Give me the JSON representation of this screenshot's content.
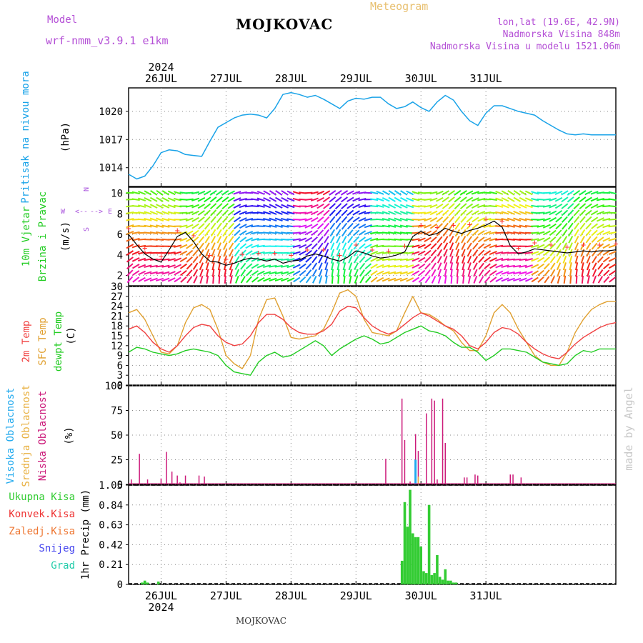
{
  "header": {
    "model_label": "Model",
    "model_name": "wrf-nmm_v3.9.1 e1km",
    "title": "MOJKOVAC",
    "meteogram": "Meteogram",
    "lonlat": "lon,lat (19.6E, 42.9N)",
    "elevation": "Nadmorska Visina 848m",
    "model_elevation": "Nadmorska Visina u modelu 1521.06m",
    "year": "2024",
    "footer": "MOJKOVAC",
    "watermark": "made by Angel"
  },
  "colors": {
    "pressure": "#1aa3e8",
    "wind_speed": "#000000",
    "temp2m": "#f04040",
    "sfc_temp": "#e0a030",
    "dewpt": "#22cc22",
    "high_cloud": "#22aaee",
    "mid_cloud": "#e8b040",
    "low_cloud": "#cc1a7a",
    "total_precip": "#33cc33",
    "conv_precip": "#ee3333",
    "frz_precip": "#ee7733",
    "snow": "#4444ee",
    "grad": "#22ccaa",
    "wind_label": "#22cc22",
    "compass": "#aa55dd",
    "header_purple": "#b44fd6",
    "header_orange": "#e8c070"
  },
  "chart_data": [
    {
      "type": "line",
      "panel": "pressure",
      "ylabel_lines": [
        "Pritisak na nivou mora",
        "(hPa)"
      ],
      "x_unit": "hours from 2024-07-25 12:00",
      "xticks": [
        "26JUL",
        "27JUL",
        "28JUL",
        "29JUL",
        "30JUL",
        "31JUL"
      ],
      "ylim": [
        1012.0,
        1022.5
      ],
      "yticks": [
        1014,
        1017,
        1020
      ],
      "grid": true,
      "series": [
        {
          "x": [
            0,
            3,
            6,
            9,
            12,
            15,
            18,
            21,
            24,
            27,
            30,
            33,
            36,
            39,
            42,
            45,
            48,
            51,
            54,
            57,
            60,
            63,
            66,
            69,
            72,
            75,
            78,
            81,
            84,
            87,
            90,
            93,
            96,
            99,
            102,
            105,
            108,
            111,
            114,
            117,
            120,
            123,
            126,
            129,
            132,
            135,
            138,
            141,
            144,
            147,
            150,
            153,
            156,
            159,
            162,
            165,
            168,
            171,
            174,
            177,
            180
          ],
          "values": [
            1013.3,
            1012.8,
            1013.1,
            1014.2,
            1015.6,
            1015.9,
            1015.8,
            1015.4,
            1015.3,
            1015.2,
            1016.8,
            1018.3,
            1018.8,
            1019.3,
            1019.6,
            1019.7,
            1019.6,
            1019.3,
            1020.3,
            1021.8,
            1022.0,
            1021.8,
            1021.5,
            1021.7,
            1021.3,
            1020.8,
            1020.3,
            1021.1,
            1021.4,
            1021.3,
            1021.5,
            1021.5,
            1020.8,
            1020.3,
            1020.5,
            1021.0,
            1020.4,
            1020.0,
            1021.0,
            1021.7,
            1021.2,
            1020.0,
            1019.0,
            1018.5,
            1019.8,
            1020.6,
            1020.6,
            1020.3,
            1020.0,
            1019.8,
            1019.6,
            1019.0,
            1018.5,
            1018.0,
            1017.6,
            1017.5,
            1017.6,
            1017.5,
            1017.5,
            1017.5,
            1017.5
          ]
        }
      ]
    },
    {
      "type": "line",
      "panel": "wind",
      "ylabel_lines": [
        "10m Vjetar",
        "Brzina i Pravac",
        "(m/s)"
      ],
      "compass": {
        "n": "N",
        "s": "S",
        "w": "W",
        "e": "E"
      },
      "ylim": [
        1.0,
        10.6
      ],
      "yticks": [
        2,
        4,
        6,
        8,
        10
      ],
      "grid": true,
      "series": [
        {
          "name": "Brzina",
          "x": [
            0,
            3,
            6,
            9,
            12,
            15,
            18,
            21,
            24,
            27,
            30,
            33,
            36,
            39,
            42,
            45,
            48,
            51,
            54,
            57,
            60,
            63,
            66,
            69,
            72,
            75,
            78,
            81,
            84,
            87,
            90,
            93,
            96,
            99,
            102,
            105,
            108,
            111,
            114,
            117,
            120,
            123,
            126,
            129,
            132,
            135,
            138,
            141,
            144,
            147,
            150,
            153,
            156,
            159,
            162,
            165,
            168,
            171,
            174,
            177,
            180
          ],
          "values": [
            6.0,
            5.0,
            4.1,
            3.6,
            3.3,
            4.5,
            5.8,
            6.2,
            5.3,
            4.1,
            3.4,
            3.3,
            3.0,
            3.2,
            3.5,
            3.7,
            3.6,
            3.4,
            3.6,
            3.2,
            3.4,
            3.5,
            3.9,
            4.1,
            3.9,
            3.6,
            3.4,
            3.8,
            4.4,
            4.2,
            3.9,
            3.7,
            3.8,
            4.0,
            4.3,
            5.8,
            6.3,
            5.9,
            6.1,
            6.6,
            6.3,
            6.1,
            6.4,
            6.6,
            6.9,
            7.3,
            6.7,
            4.9,
            4.1,
            4.3,
            4.6,
            4.5,
            4.4,
            4.3,
            4.2,
            4.3,
            4.4,
            4.3,
            4.4,
            4.4,
            4.5
          ]
        }
      ]
    },
    {
      "type": "line",
      "panel": "temperature",
      "ylabel_lines": [
        "2m Temp",
        "SFC Temp",
        "dewpt Temp",
        "(C)"
      ],
      "ylim": [
        0,
        30
      ],
      "yticks": [
        0,
        3,
        6,
        9,
        12,
        15,
        18,
        21,
        24,
        27,
        30
      ],
      "grid": true,
      "x": [
        0,
        3,
        6,
        9,
        12,
        15,
        18,
        21,
        24,
        27,
        30,
        33,
        36,
        39,
        42,
        45,
        48,
        51,
        54,
        57,
        60,
        63,
        66,
        69,
        72,
        75,
        78,
        81,
        84,
        87,
        90,
        93,
        96,
        99,
        102,
        105,
        108,
        111,
        114,
        117,
        120,
        123,
        126,
        129,
        132,
        135,
        138,
        141,
        144,
        147,
        150,
        153,
        156,
        159,
        162,
        165,
        168,
        171,
        174,
        177,
        180
      ],
      "series": [
        {
          "name": "2m Temp",
          "values": [
            17.0,
            18.0,
            16.0,
            13.0,
            11.0,
            10.0,
            12.0,
            15.0,
            17.5,
            18.5,
            18.0,
            15.0,
            13.0,
            12.0,
            12.5,
            15.0,
            19.0,
            21.5,
            21.5,
            20.0,
            17.5,
            16.0,
            15.5,
            15.5,
            16.5,
            18.5,
            22.5,
            24.0,
            23.5,
            20.5,
            18.0,
            16.5,
            15.5,
            16.5,
            18.5,
            20.5,
            22.0,
            21.0,
            19.5,
            18.0,
            17.0,
            15.0,
            12.0,
            11.0,
            13.0,
            16.0,
            17.5,
            17.0,
            15.5,
            13.0,
            11.0,
            9.5,
            8.5,
            8.0,
            10.0,
            12.5,
            14.5,
            16.0,
            17.5,
            18.5,
            19.0
          ]
        },
        {
          "name": "SFC Temp",
          "values": [
            22.0,
            23.0,
            20.0,
            15.0,
            10.0,
            9.5,
            12.0,
            19.0,
            23.5,
            24.5,
            23.0,
            17.0,
            9.0,
            6.5,
            5.0,
            9.0,
            20.0,
            26.0,
            26.5,
            21.0,
            14.5,
            14.0,
            14.5,
            15.0,
            17.0,
            22.0,
            28.0,
            29.0,
            27.0,
            20.0,
            16.0,
            15.5,
            15.0,
            16.5,
            22.0,
            27.0,
            22.0,
            21.5,
            20.0,
            18.0,
            16.5,
            13.0,
            10.5,
            10.5,
            15.0,
            22.0,
            24.5,
            22.0,
            17.0,
            13.0,
            9.0,
            7.0,
            6.0,
            6.0,
            10.0,
            16.0,
            20.0,
            23.0,
            24.5,
            25.5,
            25.5
          ]
        },
        {
          "name": "dewpt Temp",
          "values": [
            10.0,
            11.5,
            11.0,
            10.0,
            9.5,
            9.0,
            9.5,
            10.5,
            11.0,
            10.5,
            10.0,
            9.0,
            6.0,
            4.0,
            3.5,
            3.0,
            7.0,
            9.0,
            10.0,
            8.5,
            9.0,
            10.5,
            12.0,
            13.5,
            12.0,
            9.0,
            11.0,
            12.5,
            14.0,
            15.0,
            14.0,
            12.5,
            13.0,
            14.5,
            16.0,
            17.0,
            18.0,
            16.5,
            16.0,
            15.0,
            13.0,
            11.5,
            11.5,
            10.0,
            7.5,
            9.0,
            11.0,
            11.0,
            10.5,
            10.0,
            8.5,
            7.0,
            6.5,
            6.0,
            6.5,
            9.0,
            10.5,
            10.0,
            11.0,
            11.0,
            11.0
          ]
        }
      ]
    },
    {
      "type": "bar",
      "panel": "clouds",
      "ylabel_lines": [
        "Visoka Oblacnost",
        "Srednja Oblacnost",
        "Niska Oblacnost",
        "(%)"
      ],
      "ylim": [
        0,
        100
      ],
      "yticks": [
        0,
        25,
        50,
        75,
        100
      ],
      "grid": true,
      "series": [
        {
          "name": "Niska Oblacnost",
          "x": [
            1,
            4,
            7,
            12,
            14,
            16,
            18,
            19,
            21,
            26,
            28,
            29,
            95,
            101,
            102,
            104,
            106,
            107,
            110,
            112,
            113,
            114,
            116,
            117,
            124,
            125,
            128,
            129,
            141,
            142,
            145
          ],
          "values": [
            5,
            31,
            5,
            6,
            33,
            13,
            9,
            2,
            9,
            9,
            8,
            0,
            26,
            87,
            45,
            3,
            51,
            34,
            72,
            87,
            85,
            5,
            87,
            42,
            7,
            7,
            10,
            9,
            10,
            10,
            7
          ]
        },
        {
          "name": "Srednja Oblacnost",
          "x": [
            107
          ],
          "values": [
            8
          ]
        },
        {
          "name": "Visoka Oblacnost",
          "x": [
            106
          ],
          "values": [
            25
          ]
        }
      ]
    },
    {
      "type": "bar",
      "panel": "precip",
      "ylabel_lines": [
        "1hr Precip (mm)"
      ],
      "legend": [
        "Ukupna Kisa",
        "Konvek.Kisa",
        "Zaledj.Kisa",
        "Snijeg",
        "Grad"
      ],
      "ylim": [
        0,
        1.05
      ],
      "yticks": [
        0,
        0.21,
        0.42,
        0.63,
        0.84,
        1.05
      ],
      "grid": true,
      "series": [
        {
          "name": "Ukupna Kisa",
          "x": [
            5,
            6,
            7,
            11,
            101,
            102,
            103,
            104,
            105,
            106,
            107,
            108,
            109,
            110,
            111,
            112,
            113,
            114,
            115,
            116,
            117,
            118,
            119,
            120,
            121
          ],
          "values": [
            0.02,
            0.04,
            0.02,
            0.03,
            0.25,
            0.87,
            0.61,
            1.0,
            0.54,
            0.5,
            0.5,
            0.4,
            0.14,
            0.12,
            0.84,
            0.1,
            0.12,
            0.31,
            0.08,
            0.05,
            0.16,
            0.04,
            0.04,
            0.02,
            0.02
          ]
        }
      ]
    }
  ]
}
